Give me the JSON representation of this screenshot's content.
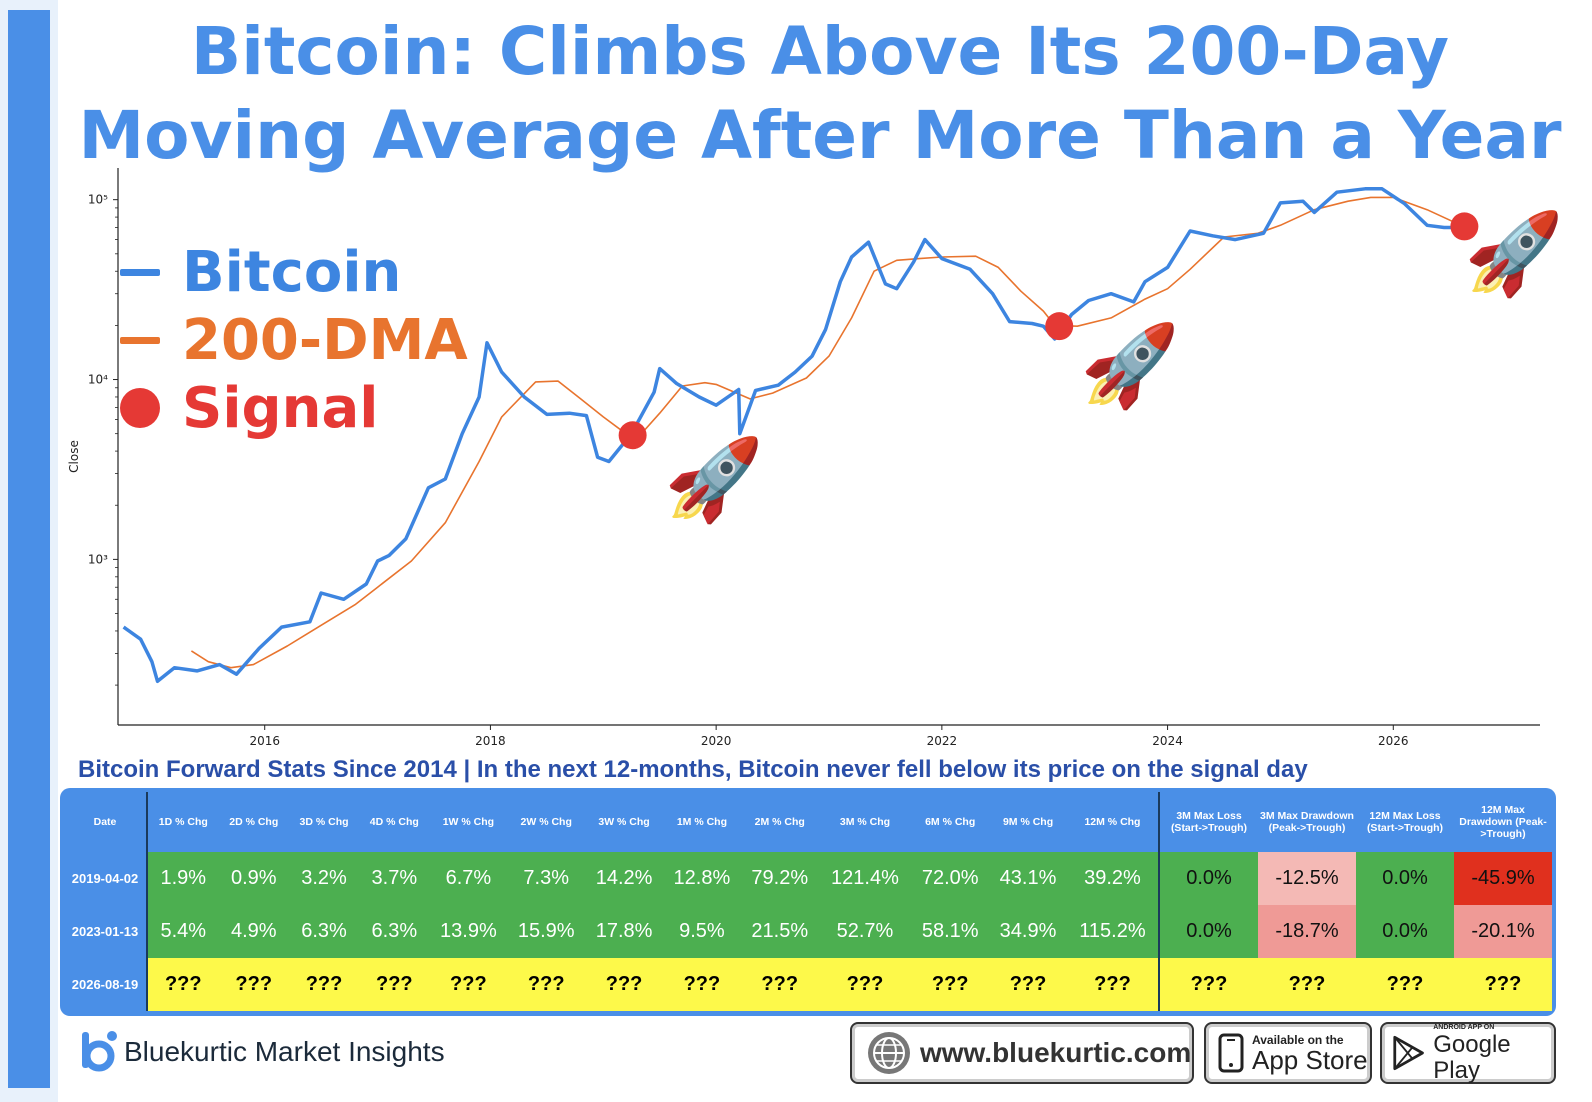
{
  "title": "Bitcoin: Climbs Above Its 200-Day Moving Average After More Than a Year",
  "legend": {
    "bitcoin": "Bitcoin",
    "dma": "200-DMA",
    "signal": "Signal"
  },
  "colors": {
    "bitcoin": "#3d85e0",
    "dma": "#e8742e",
    "signal": "#e53935",
    "brand": "#4a8fe7",
    "green": "#4caf50",
    "yellow": "#fdf94a"
  },
  "chart_data": {
    "type": "line",
    "yscale": "log",
    "ylabel": "Close",
    "xlabel": "",
    "xlim": [
      2014.7,
      2027.3
    ],
    "ylim": [
      120,
      150000
    ],
    "x_ticks": [
      "2016",
      "2018",
      "2020",
      "2022",
      "2024",
      "2026"
    ],
    "y_ticks": [
      {
        "value": 1000,
        "label": "10³"
      },
      {
        "value": 10000,
        "label": "10⁴"
      },
      {
        "value": 100000,
        "label": "10⁵"
      }
    ],
    "series": [
      {
        "name": "Bitcoin",
        "x": [
          2014.75,
          2014.9,
          2015.0,
          2015.05,
          2015.2,
          2015.4,
          2015.6,
          2015.75,
          2015.95,
          2016.15,
          2016.4,
          2016.5,
          2016.7,
          2016.9,
          2017.0,
          2017.1,
          2017.25,
          2017.45,
          2017.6,
          2017.75,
          2017.9,
          2017.97,
          2018.1,
          2018.3,
          2018.5,
          2018.7,
          2018.85,
          2018.95,
          2019.05,
          2019.25,
          2019.45,
          2019.5,
          2019.65,
          2019.85,
          2020.0,
          2020.2,
          2020.21,
          2020.35,
          2020.55,
          2020.7,
          2020.85,
          2020.97,
          2021.1,
          2021.2,
          2021.35,
          2021.5,
          2021.6,
          2021.75,
          2021.85,
          2022.0,
          2022.25,
          2022.45,
          2022.6,
          2022.8,
          2022.9,
          2023.0,
          2023.15,
          2023.3,
          2023.5,
          2023.7,
          2023.8,
          2024.0,
          2024.2,
          2024.4,
          2024.6,
          2024.85,
          2025.0,
          2025.2,
          2025.3,
          2025.5,
          2025.75,
          2025.9,
          2026.1,
          2026.3,
          2026.45,
          2026.6
        ],
        "values": [
          420,
          360,
          270,
          210,
          250,
          240,
          260,
          230,
          320,
          420,
          450,
          650,
          600,
          730,
          980,
          1050,
          1300,
          2500,
          2800,
          5000,
          8000,
          16000,
          11000,
          8000,
          6400,
          6500,
          6300,
          3700,
          3500,
          5000,
          8500,
          11500,
          9500,
          8000,
          7200,
          8800,
          5000,
          8700,
          9300,
          11000,
          13500,
          19000,
          35000,
          48000,
          58000,
          34000,
          32000,
          45000,
          60000,
          47000,
          41000,
          30000,
          21000,
          20500,
          19800,
          16800,
          23000,
          27500,
          30000,
          27000,
          35000,
          42000,
          67000,
          63000,
          60000,
          65000,
          96000,
          98000,
          85000,
          110000,
          115000,
          115000,
          95000,
          72000,
          70000,
          70000
        ]
      },
      {
        "name": "200-DMA",
        "x": [
          2015.35,
          2015.5,
          2015.7,
          2015.9,
          2016.2,
          2016.5,
          2016.8,
          2017.0,
          2017.3,
          2017.6,
          2017.9,
          2018.1,
          2018.4,
          2018.6,
          2018.8,
          2019.0,
          2019.2,
          2019.3,
          2019.5,
          2019.7,
          2019.9,
          2020.0,
          2020.3,
          2020.5,
          2020.8,
          2021.0,
          2021.2,
          2021.4,
          2021.6,
          2021.8,
          2022.0,
          2022.3,
          2022.5,
          2022.7,
          2022.9,
          2023.0,
          2023.2,
          2023.5,
          2023.8,
          2024.0,
          2024.2,
          2024.5,
          2024.8,
          2025.0,
          2025.3,
          2025.6,
          2025.8,
          2026.0,
          2026.3,
          2026.6
        ],
        "values": [
          310,
          270,
          250,
          260,
          330,
          430,
          560,
          700,
          980,
          1600,
          3500,
          6200,
          9700,
          9800,
          7800,
          6200,
          5000,
          4700,
          6500,
          9200,
          9600,
          9400,
          7800,
          8400,
          10200,
          13500,
          22000,
          40000,
          46000,
          47000,
          48000,
          48500,
          42000,
          31000,
          24000,
          20000,
          19800,
          22000,
          28000,
          32000,
          41000,
          62000,
          65000,
          72000,
          88000,
          98000,
          103000,
          103000,
          88000,
          72000
        ]
      }
    ],
    "signals": [
      {
        "x": 2019.26,
        "y": 4900
      },
      {
        "x": 2023.04,
        "y": 19800
      },
      {
        "x": 2026.63,
        "y": 71000
      }
    ]
  },
  "stats_caption": "Bitcoin Forward Stats Since 2014 | In the next 12-months, Bitcoin never fell below its price on the signal day",
  "table": {
    "headers": [
      "Date",
      "1D % Chg",
      "2D % Chg",
      "3D % Chg",
      "4D % Chg",
      "1W % Chg",
      "2W % Chg",
      "3W % Chg",
      "1M % Chg",
      "2M % Chg",
      "3M % Chg",
      "6M % Chg",
      "9M % Chg",
      "12M % Chg",
      "3M Max Loss (Start->Trough)",
      "3M Max Drawdown (Peak->Trough)",
      "12M Max Loss (Start->Trough)",
      "12M Max Drawdown (Peak->Trough)"
    ],
    "rows": [
      {
        "date": "2019-04-02",
        "cells": [
          "1.9%",
          "0.9%",
          "3.2%",
          "3.7%",
          "6.7%",
          "7.3%",
          "14.2%",
          "12.8%",
          "79.2%",
          "121.4%",
          "72.0%",
          "43.1%",
          "39.2%",
          "0.0%",
          "-12.5%",
          "0.0%",
          "-45.9%"
        ],
        "risk_colors": [
          "#4caf50",
          "#f4b9b5",
          "#4caf50",
          "#e0301e"
        ]
      },
      {
        "date": "2023-01-13",
        "cells": [
          "5.4%",
          "4.9%",
          "6.3%",
          "6.3%",
          "13.9%",
          "15.9%",
          "17.8%",
          "9.5%",
          "21.5%",
          "52.7%",
          "58.1%",
          "34.9%",
          "115.2%",
          "0.0%",
          "-18.7%",
          "0.0%",
          "-20.1%"
        ],
        "risk_colors": [
          "#4caf50",
          "#ef9a96",
          "#4caf50",
          "#ef9a96"
        ]
      },
      {
        "date": "2026-08-19",
        "cells": [
          "???",
          "???",
          "???",
          "???",
          "???",
          "???",
          "???",
          "???",
          "???",
          "???",
          "???",
          "???",
          "???",
          "???",
          "???",
          "???",
          "???"
        ]
      }
    ]
  },
  "footer": {
    "brand": "Bluekurtic Market Insights",
    "brand_small": "bluekurtic",
    "website": "www.bluekurtic.com",
    "app_store_small": "Available on the",
    "app_store_big": "App Store",
    "play_small": "ANDROID APP ON",
    "play_big": "Google Play"
  }
}
